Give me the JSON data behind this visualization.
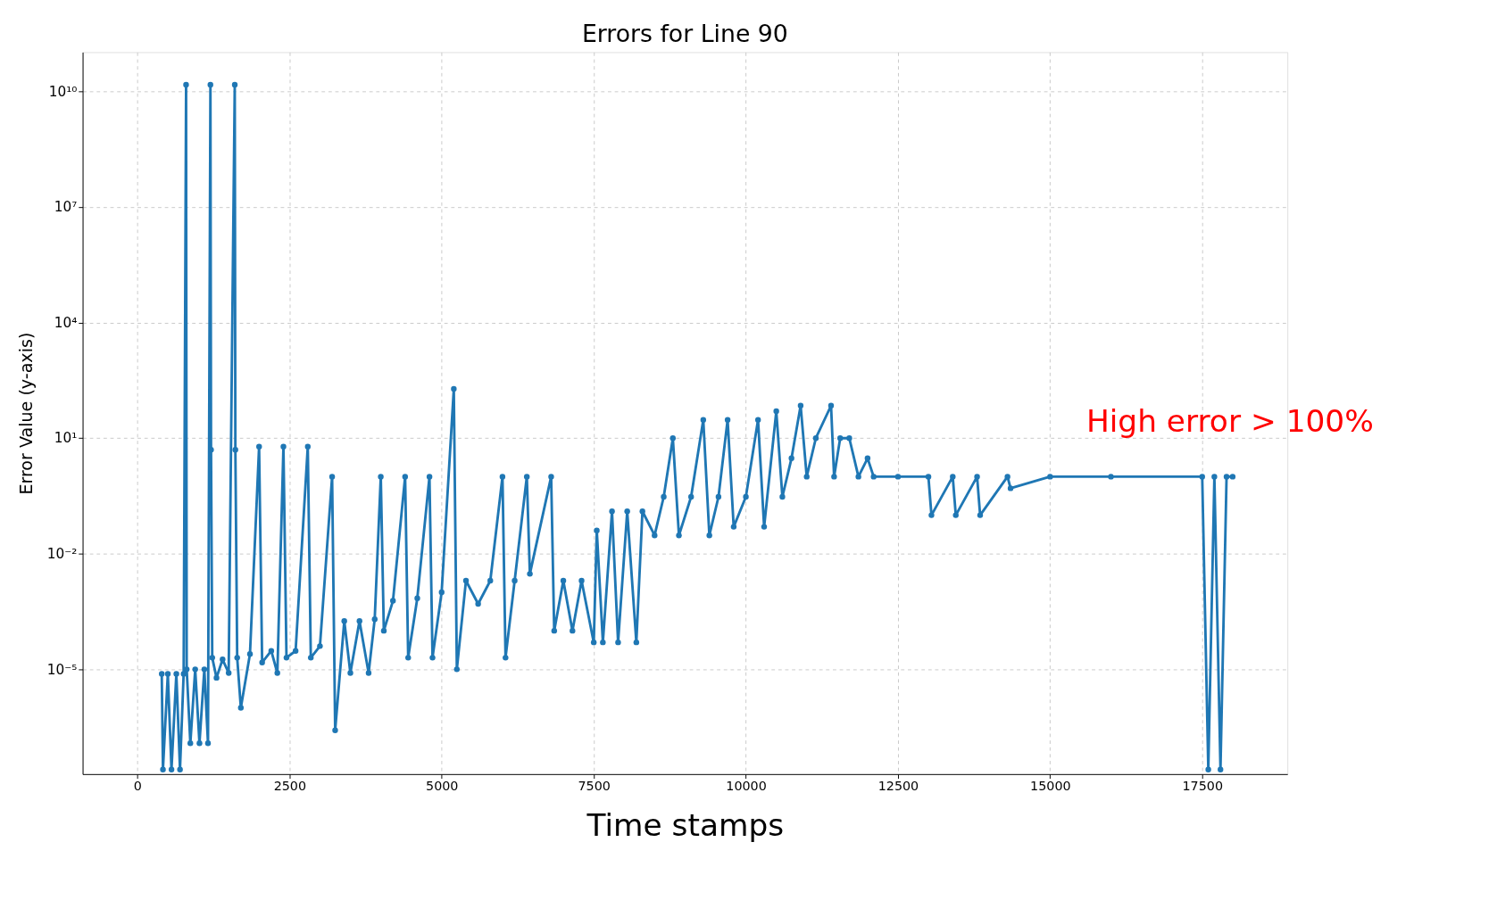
{
  "chart_data": {
    "type": "line",
    "title": "Errors for Line 90",
    "xlabel": "Time stamps",
    "ylabel": "Error Value (y-axis)",
    "annotations": [
      "High error > 100%"
    ],
    "log": "y",
    "grid": true,
    "marker": "circle",
    "line_style": "solid",
    "xlim": [
      -900,
      18900
    ],
    "ylim": [
      1.9e-08,
      105000000000.0
    ],
    "xticks": [
      0,
      2500,
      5000,
      7500,
      10000,
      12500,
      15000,
      17500
    ],
    "yticks": [
      {
        "value": 1e-05,
        "label": "10⁻⁵"
      },
      {
        "value": 0.01,
        "label": "10⁻²"
      },
      {
        "value": 10,
        "label": "10¹"
      },
      {
        "value": 10000,
        "label": "10⁴"
      },
      {
        "value": 10000000,
        "label": "10⁷"
      },
      {
        "value": 10000000000,
        "label": "10¹⁰"
      }
    ],
    "x": [
      400,
      420,
      500,
      560,
      640,
      700,
      760,
      800,
      810,
      870,
      950,
      1020,
      1100,
      1160,
      1200,
      1210,
      1230,
      1300,
      1400,
      1500,
      1600,
      1610,
      1640,
      1700,
      1850,
      2000,
      2050,
      2200,
      2300,
      2400,
      2450,
      2600,
      2800,
      2850,
      3000,
      3200,
      3250,
      3400,
      3500,
      3650,
      3800,
      3900,
      4000,
      4050,
      4200,
      4400,
      4450,
      4600,
      4800,
      4850,
      5000,
      5200,
      5250,
      5400,
      5600,
      5800,
      6000,
      6050,
      6200,
      6400,
      6450,
      6800,
      6850,
      7000,
      7150,
      7300,
      7500,
      7550,
      7650,
      7800,
      7900,
      8050,
      8200,
      8300,
      8500,
      8650,
      8800,
      8900,
      9100,
      9300,
      9400,
      9550,
      9700,
      9800,
      10000,
      10200,
      10300,
      10500,
      10600,
      10750,
      10900,
      11000,
      11150,
      11400,
      11450,
      11550,
      11700,
      11850,
      12000,
      12100,
      12500,
      13000,
      13050,
      13400,
      13450,
      13800,
      13850,
      14300,
      14350,
      15000,
      16000,
      17500,
      17600,
      17700,
      17800,
      17900,
      18000
    ],
    "series": [
      {
        "color": "#1f77b4",
        "values": [
          7.6e-06,
          2.5e-08,
          7.6e-06,
          2.5e-08,
          7.6e-06,
          2.5e-08,
          7.6e-06,
          15000000000,
          1e-05,
          1.2e-07,
          1e-05,
          1.2e-07,
          1e-05,
          1.2e-07,
          15000000000,
          5,
          2e-05,
          6e-06,
          1.8e-05,
          8e-06,
          15000000000,
          5,
          2e-05,
          1e-06,
          2.5e-05,
          6,
          1.5e-05,
          3e-05,
          8e-06,
          6,
          2e-05,
          3e-05,
          6,
          2e-05,
          4e-05,
          1,
          2.6e-07,
          0.00018,
          8e-06,
          0.00018,
          8e-06,
          0.0002,
          1,
          0.0001,
          0.0006,
          1,
          2e-05,
          0.0007,
          1,
          2e-05,
          0.001,
          190,
          1e-05,
          0.002,
          0.0005,
          0.002,
          1,
          2e-05,
          0.002,
          1,
          0.003,
          1,
          0.0001,
          0.002,
          0.0001,
          0.002,
          5e-05,
          0.04,
          5e-05,
          0.126,
          5e-05,
          0.126,
          5e-05,
          0.126,
          0.03,
          0.3,
          10,
          0.03,
          0.3,
          30,
          0.03,
          0.3,
          30,
          0.05,
          0.3,
          30,
          0.05,
          50,
          0.3,
          3,
          70,
          1,
          10,
          70,
          1,
          10,
          10,
          1,
          3,
          1,
          1,
          1,
          0.1,
          1,
          0.1,
          1,
          0.1,
          1,
          0.5,
          1,
          1,
          1,
          2.5e-08,
          1,
          2.5e-08,
          1,
          1
        ]
      }
    ]
  }
}
